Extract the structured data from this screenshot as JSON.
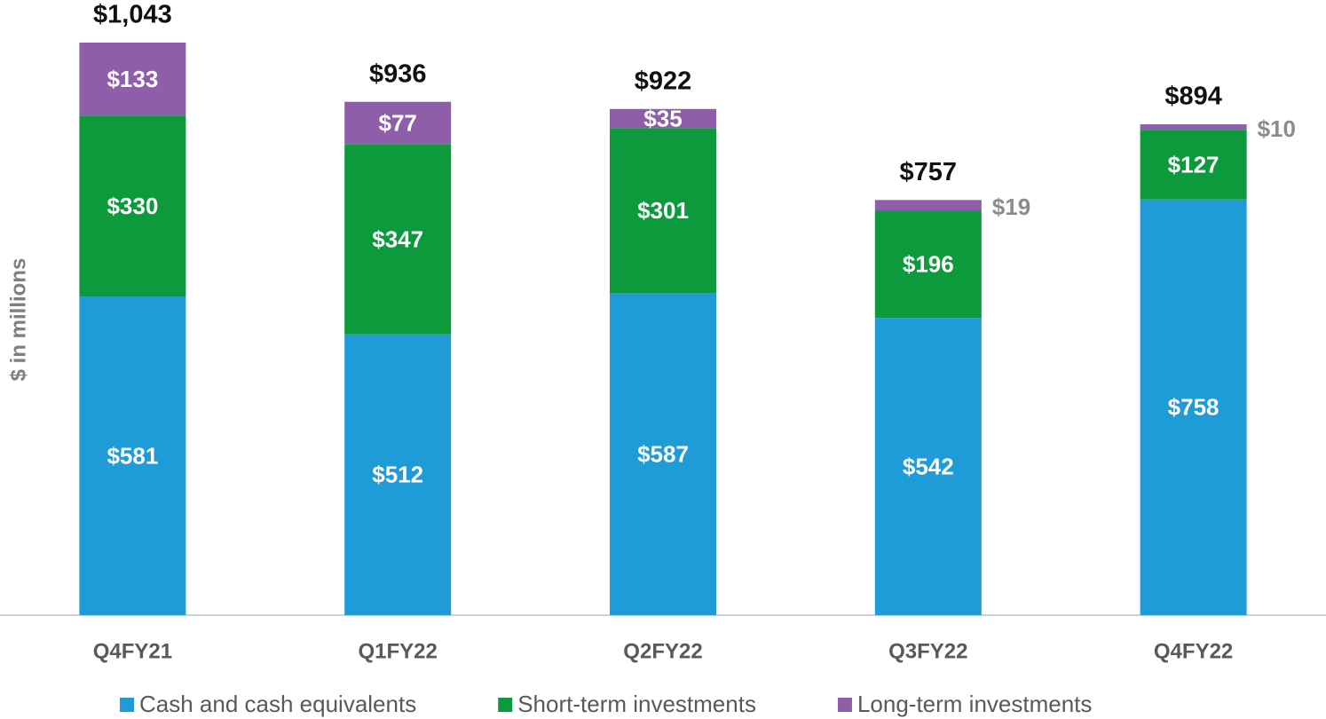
{
  "chart_data": {
    "type": "stacked_bar",
    "y_label": "$ in millions",
    "categories": [
      "Q4FY21",
      "Q1FY22",
      "Q2FY22",
      "Q3FY22",
      "Q4FY22"
    ],
    "series": [
      {
        "name": "Cash and cash equivalents",
        "color": "#1f9bd7",
        "values": [
          581,
          512,
          587,
          542,
          758
        ],
        "value_labels": [
          "$581",
          "$512",
          "$587",
          "$542",
          "$758"
        ]
      },
      {
        "name": "Short-term investments",
        "color": "#0c9a3c",
        "values": [
          330,
          347,
          301,
          196,
          127
        ],
        "value_labels": [
          "$330",
          "$347",
          "$301",
          "$196",
          "$127"
        ]
      },
      {
        "name": "Long-term investments",
        "color": "#8e5eab",
        "values": [
          133,
          77,
          35,
          19,
          10
        ],
        "value_labels": [
          "$133",
          "$77",
          "$35",
          "$19",
          "$10"
        ]
      }
    ],
    "totals": [
      1043,
      936,
      922,
      757,
      894
    ],
    "total_labels": [
      "$1,043",
      "$936",
      "$922",
      "$757",
      "$894"
    ]
  }
}
